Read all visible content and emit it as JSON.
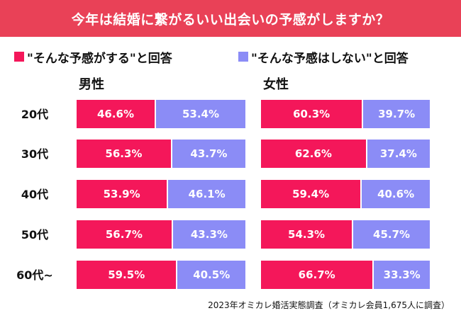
{
  "title": "今年は結婚に繋がるいい出会いの予感がしますか？",
  "colors": {
    "title_bg": "#e94157",
    "yes": "#f4175a",
    "no": "#8b8cf6"
  },
  "chart_data": {
    "type": "bar",
    "orientation": "horizontal",
    "stacked": true,
    "percent": true,
    "categories": [
      "20代",
      "30代",
      "40代",
      "50代",
      "60代~"
    ],
    "legend": [
      "\"そんな予感がする\"と回答",
      "\"そんな予感はしない\"と回答"
    ],
    "panels": [
      {
        "title": "男性",
        "series": [
          {
            "name": "\"そんな予感がする\"と回答",
            "values": [
              46.6,
              56.3,
              53.9,
              56.7,
              59.5
            ],
            "labels": [
              "46.6%",
              "56.3%",
              "53.9%",
              "56.7%",
              "59.5%"
            ]
          },
          {
            "name": "\"そんな予感はしない\"と回答",
            "values": [
              53.4,
              43.7,
              46.1,
              43.3,
              40.5
            ],
            "labels": [
              "53.4%",
              "43.7%",
              "46.1%",
              "43.3%",
              "40.5%"
            ]
          }
        ]
      },
      {
        "title": "女性",
        "series": [
          {
            "name": "\"そんな予感がする\"と回答",
            "values": [
              60.3,
              62.6,
              59.4,
              54.3,
              66.7
            ],
            "labels": [
              "60.3%",
              "62.6%",
              "59.4%",
              "54.3%",
              "66.7%"
            ]
          },
          {
            "name": "\"そんな予感はしない\"と回答",
            "values": [
              39.7,
              37.4,
              40.6,
              45.7,
              33.3
            ],
            "labels": [
              "39.7%",
              "37.4%",
              "40.6%",
              "45.7%",
              "33.3%"
            ]
          }
        ]
      }
    ]
  },
  "footnote": "2023年オミカレ婚活実態調査（オミカレ会員1,675人に調査）"
}
